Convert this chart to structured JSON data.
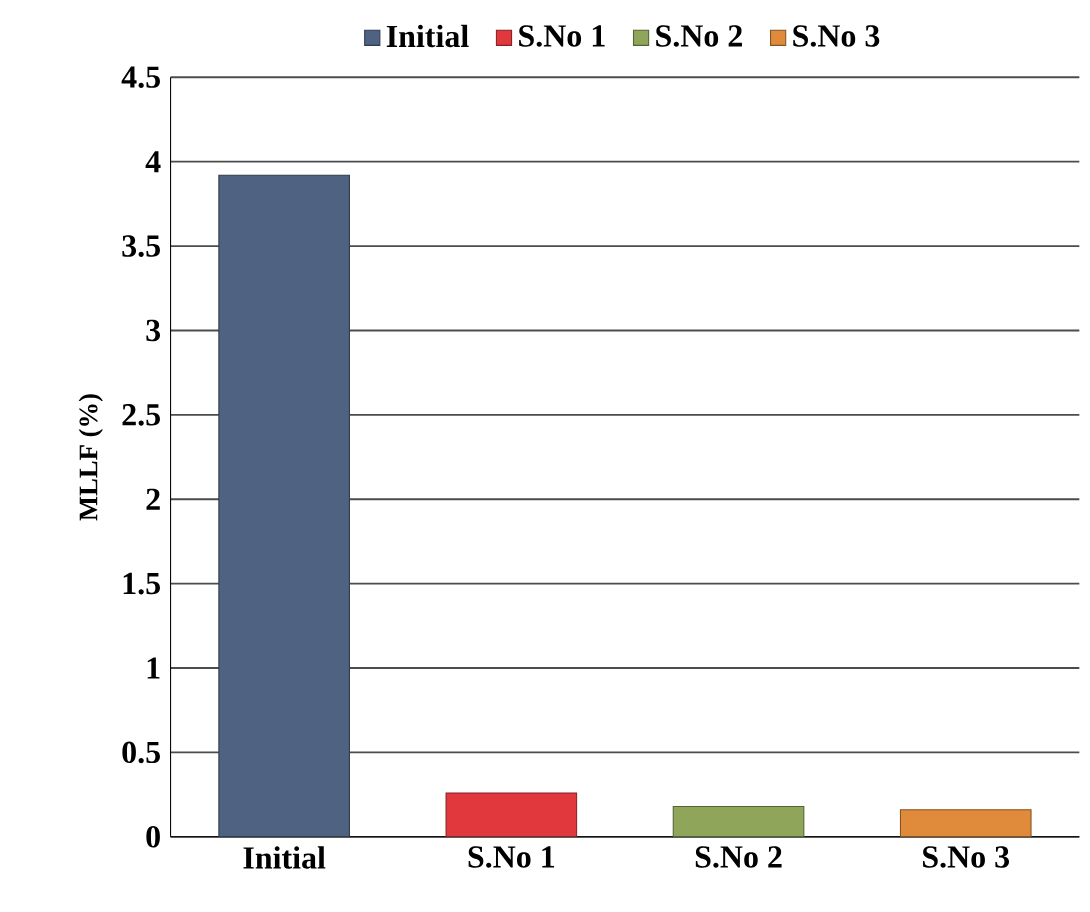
{
  "chart_data": {
    "type": "bar",
    "ylabel": "MLLF (%)",
    "categories": [
      "Initial",
      "S.No 1",
      "S.No 2",
      "S.No 3"
    ],
    "series": [
      {
        "name": "Initial",
        "color": "#4f6282",
        "values": [
          3.92,
          null,
          null,
          null
        ]
      },
      {
        "name": "S.No 1",
        "color": "#e0383c",
        "values": [
          null,
          0.26,
          null,
          null
        ]
      },
      {
        "name": "S.No 2",
        "color": "#8ea55a",
        "values": [
          null,
          null,
          0.18,
          null
        ]
      },
      {
        "name": "S.No 3",
        "color": "#e08a3c",
        "values": [
          null,
          null,
          null,
          0.16
        ]
      }
    ],
    "ylim": [
      0,
      4.5
    ],
    "yticks": [
      0,
      0.5,
      1,
      1.5,
      2,
      2.5,
      3,
      3.5,
      4,
      4.5
    ],
    "grid": "y",
    "legend": "top"
  }
}
